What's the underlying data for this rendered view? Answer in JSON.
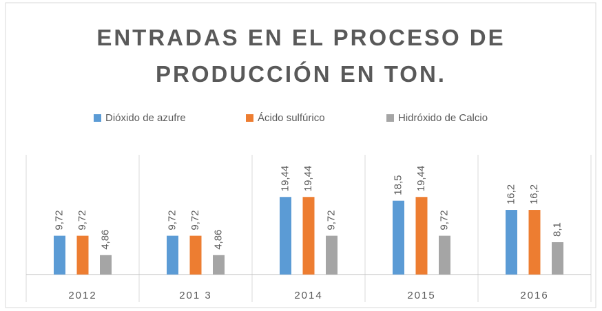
{
  "chart_data": {
    "type": "bar",
    "title": "ENTRADAS EN EL PROCESO DE PRODUCCIÓN EN TON.",
    "categories": [
      "2012",
      "201 3",
      "2014",
      "2015",
      "2016"
    ],
    "series": [
      {
        "name": "Dióxido de azufre",
        "color": "#5b9bd5",
        "values": [
          9.72,
          9.72,
          19.44,
          18.5,
          16.2
        ],
        "value_labels": [
          "9,72",
          "9,72",
          "19,44",
          "18,5",
          "16,2"
        ]
      },
      {
        "name": "Ácido sulfúrico",
        "color": "#ed7d31",
        "values": [
          9.72,
          9.72,
          19.44,
          19.44,
          16.2
        ],
        "value_labels": [
          "9,72",
          "9,72",
          "19,44",
          "19,44",
          "16,2"
        ]
      },
      {
        "name": "Hidróxido de Calcio",
        "color": "#a5a5a5",
        "values": [
          4.86,
          4.86,
          9.72,
          9.72,
          8.1
        ],
        "value_labels": [
          "4,86",
          "4,86",
          "9,72",
          "9,72",
          "8,1"
        ]
      }
    ],
    "ylim": [
      0,
      30
    ],
    "legend": "top"
  }
}
